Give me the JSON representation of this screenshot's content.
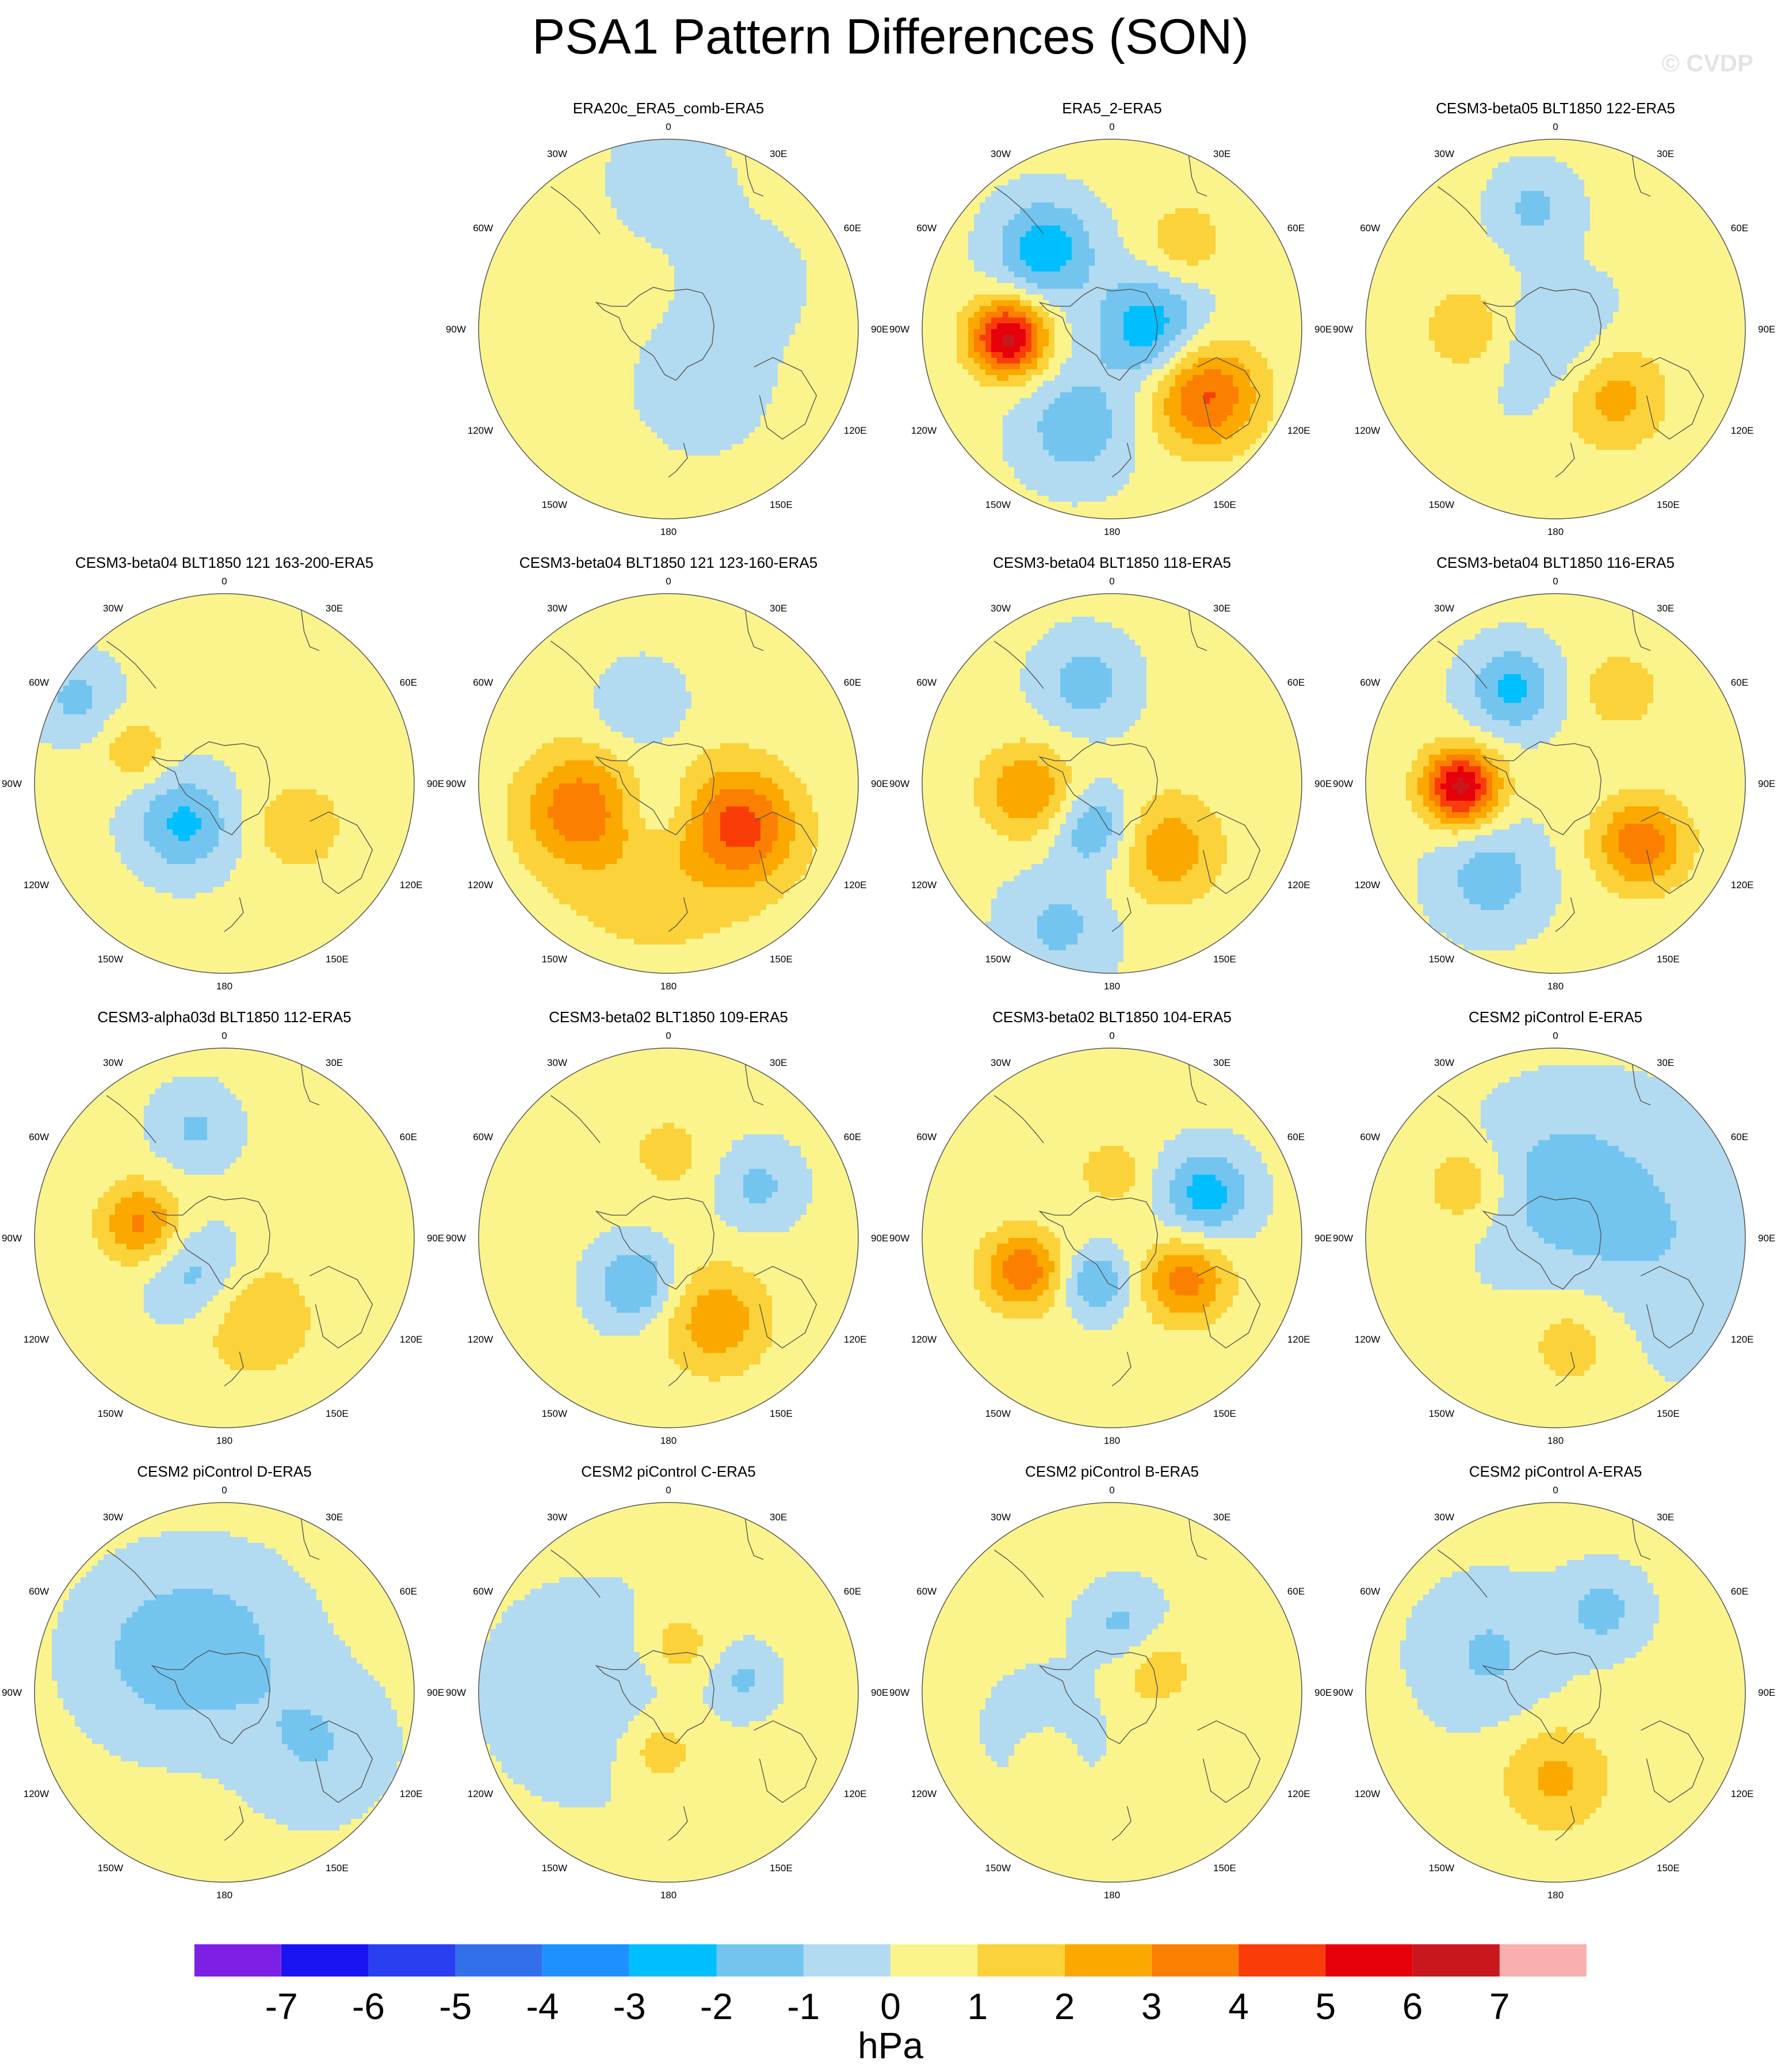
{
  "title": "PSA1 Pattern Differences (SON)",
  "watermark": "© CVDP",
  "units": "hPa",
  "colors": {
    "background": "#ffffff",
    "coast": "#555555",
    "border": "#555555",
    "levels": [
      "#7e1fe6",
      "#1a14f2",
      "#2a3ff0",
      "#3270ea",
      "#1e90ff",
      "#00bfff",
      "#73c5f0",
      "#b2daf0",
      "#fbf48c",
      "#fbd23a",
      "#fba800",
      "#fb8001",
      "#fa3d08",
      "#e6000a",
      "#c8181e",
      "#f9afaf"
    ]
  },
  "colorbar": {
    "ticks": [
      "-7",
      "-6",
      "-5",
      "-4",
      "-3",
      "-2",
      "-1",
      "0",
      "1",
      "2",
      "3",
      "4",
      "5",
      "6",
      "7"
    ]
  },
  "longitude_labels": {
    "top": "0",
    "e30": "30E",
    "e60": "60E",
    "e90": "90E",
    "e120": "120E",
    "e150": "150E",
    "bottom": "180",
    "w150": "150W",
    "w120": "120W",
    "w90": "90W",
    "w60": "60W",
    "w30": "30W"
  },
  "panels": [
    {
      "title": "ERA20c_ERA5_comb-ERA5",
      "blobs": [
        {
          "lon": 150,
          "r": 0.35,
          "s": 0.25,
          "amp": -0.7
        },
        {
          "lon": 60,
          "r": 0.5,
          "s": 0.25,
          "amp": -0.5
        },
        {
          "lon": 0,
          "r": 0.8,
          "s": 0.25,
          "amp": -0.6
        }
      ]
    },
    {
      "title": "ERA5_2-ERA5",
      "blobs": [
        {
          "lon": 265,
          "r": 0.55,
          "s": 0.14,
          "amp": 6
        },
        {
          "lon": 320,
          "r": 0.55,
          "s": 0.18,
          "amp": -3
        },
        {
          "lon": 200,
          "r": 0.55,
          "s": 0.2,
          "amp": -2
        },
        {
          "lon": 125,
          "r": 0.6,
          "s": 0.2,
          "amp": 4
        },
        {
          "lon": 40,
          "r": 0.6,
          "s": 0.15,
          "amp": 1.5
        },
        {
          "lon": 90,
          "r": 0.2,
          "s": 0.2,
          "amp": -3
        }
      ]
    },
    {
      "title": "CESM3-beta05 BLT1850 122-ERA5",
      "blobs": [
        {
          "lon": 140,
          "r": 0.45,
          "s": 0.2,
          "amp": 2.5
        },
        {
          "lon": 270,
          "r": 0.45,
          "s": 0.18,
          "amp": 1.6
        },
        {
          "lon": 350,
          "r": 0.65,
          "s": 0.15,
          "amp": -1.5
        },
        {
          "lon": 180,
          "r": 0.1,
          "s": 0.25,
          "amp": -1.5
        }
      ]
    },
    {
      "title": "CESM3-beta04 BLT1850 121 163-200-ERA5",
      "blobs": [
        {
          "lon": 225,
          "r": 0.3,
          "s": 0.18,
          "amp": -2.5
        },
        {
          "lon": 120,
          "r": 0.45,
          "s": 0.17,
          "amp": 1.6
        },
        {
          "lon": 290,
          "r": 0.5,
          "s": 0.12,
          "amp": 1.6
        },
        {
          "lon": 300,
          "r": 0.9,
          "s": 0.15,
          "amp": -1.5
        }
      ]
    },
    {
      "title": "CESM3-beta04 BLT1850 121 123-160-ERA5",
      "blobs": [
        {
          "lon": 120,
          "r": 0.45,
          "s": 0.2,
          "amp": 3.5
        },
        {
          "lon": 255,
          "r": 0.5,
          "s": 0.2,
          "amp": 2.8
        },
        {
          "lon": 190,
          "r": 0.35,
          "s": 0.45,
          "amp": 1.4
        },
        {
          "lon": 340,
          "r": 0.4,
          "s": 0.18,
          "amp": -1.5
        },
        {
          "lon": 200,
          "r": 0.15,
          "s": 0.15,
          "amp": -1.5
        }
      ]
    },
    {
      "title": "CESM3-beta04 BLT1850 118-ERA5",
      "blobs": [
        {
          "lon": 265,
          "r": 0.45,
          "s": 0.17,
          "amp": 2.8
        },
        {
          "lon": 140,
          "r": 0.45,
          "s": 0.2,
          "amp": 2.5
        },
        {
          "lon": 345,
          "r": 0.55,
          "s": 0.17,
          "amp": -1.8
        },
        {
          "lon": 200,
          "r": 0.25,
          "s": 0.15,
          "amp": -2.3
        },
        {
          "lon": 200,
          "r": 0.8,
          "s": 0.2,
          "amp": -1.5
        }
      ]
    },
    {
      "title": "CESM3-beta04 BLT1850 116-ERA5",
      "blobs": [
        {
          "lon": 268,
          "r": 0.5,
          "s": 0.14,
          "amp": 6
        },
        {
          "lon": 125,
          "r": 0.55,
          "s": 0.17,
          "amp": 3.5
        },
        {
          "lon": 215,
          "r": 0.6,
          "s": 0.2,
          "amp": -1.8
        },
        {
          "lon": 335,
          "r": 0.55,
          "s": 0.16,
          "amp": -2.5
        },
        {
          "lon": 35,
          "r": 0.6,
          "s": 0.14,
          "amp": 1.6
        }
      ]
    },
    {
      "title": "CESM3-alpha03d BLT1850 112-ERA5",
      "blobs": [
        {
          "lon": 280,
          "r": 0.45,
          "s": 0.15,
          "amp": 3
        },
        {
          "lon": 160,
          "r": 0.45,
          "s": 0.22,
          "amp": 1.8
        },
        {
          "lon": 215,
          "r": 0.25,
          "s": 0.18,
          "amp": -1.8
        },
        {
          "lon": 345,
          "r": 0.6,
          "s": 0.15,
          "amp": -1.4
        }
      ]
    },
    {
      "title": "CESM3-beta02 BLT1850 109-ERA5",
      "blobs": [
        {
          "lon": 150,
          "r": 0.5,
          "s": 0.2,
          "amp": 2.5
        },
        {
          "lon": 215,
          "r": 0.3,
          "s": 0.15,
          "amp": -2.4
        },
        {
          "lon": 0,
          "r": 0.45,
          "s": 0.15,
          "amp": 1.2
        },
        {
          "lon": 60,
          "r": 0.55,
          "s": 0.15,
          "amp": -1.5
        }
      ]
    },
    {
      "title": "CESM3-beta02 BLT1850 104-ERA5",
      "blobs": [
        {
          "lon": 250,
          "r": 0.5,
          "s": 0.15,
          "amp": 3.5
        },
        {
          "lon": 120,
          "r": 0.45,
          "s": 0.16,
          "amp": 3.2
        },
        {
          "lon": 65,
          "r": 0.55,
          "s": 0.16,
          "amp": -2.8
        },
        {
          "lon": 200,
          "r": 0.25,
          "s": 0.12,
          "amp": -2.4
        },
        {
          "lon": 0,
          "r": 0.35,
          "s": 0.12,
          "amp": 1.5
        }
      ]
    },
    {
      "title": "CESM2 piControl E-ERA5",
      "blobs": [
        {
          "lon": 300,
          "r": 0.55,
          "s": 0.15,
          "amp": 1.8
        },
        {
          "lon": 170,
          "r": 0.55,
          "s": 0.2,
          "amp": 1.5
        },
        {
          "lon": 90,
          "r": 0.5,
          "s": 0.45,
          "amp": -1.2
        },
        {
          "lon": 0,
          "r": 0.3,
          "s": 0.3,
          "amp": -1.3
        }
      ]
    },
    {
      "title": "CESM2 piControl D-ERA5",
      "blobs": [
        {
          "lon": 0,
          "r": 0.25,
          "s": 0.3,
          "amp": -1.2
        },
        {
          "lon": 120,
          "r": 0.55,
          "s": 0.25,
          "amp": -1.3
        },
        {
          "lon": 300,
          "r": 0.4,
          "s": 0.3,
          "amp": -1.4
        }
      ]
    },
    {
      "title": "CESM2 piControl C-ERA5",
      "blobs": [
        {
          "lon": 10,
          "r": 0.25,
          "s": 0.15,
          "amp": 1.5
        },
        {
          "lon": 190,
          "r": 0.3,
          "s": 0.15,
          "amp": 1.6
        },
        {
          "lon": 80,
          "r": 0.4,
          "s": 0.12,
          "amp": -1.4
        },
        {
          "lon": 270,
          "r": 0.4,
          "s": 0.35,
          "amp": -1.2
        }
      ]
    },
    {
      "title": "CESM2 piControl B-ERA5",
      "blobs": [
        {
          "lon": 10,
          "r": 0.35,
          "s": 0.15,
          "amp": -1.6
        },
        {
          "lon": 240,
          "r": 0.4,
          "s": 0.2,
          "amp": -1.2
        },
        {
          "lon": 60,
          "r": 0.25,
          "s": 0.15,
          "amp": 1.5
        },
        {
          "lon": 230,
          "r": 0.45,
          "s": 0.12,
          "amp": 1.3
        }
      ]
    },
    {
      "title": "CESM2 piControl A-ERA5",
      "blobs": [
        {
          "lon": 180,
          "r": 0.45,
          "s": 0.2,
          "amp": 2
        },
        {
          "lon": 30,
          "r": 0.5,
          "s": 0.15,
          "amp": -1.6
        },
        {
          "lon": 300,
          "r": 0.4,
          "s": 0.25,
          "amp": -1.4
        }
      ]
    }
  ]
}
